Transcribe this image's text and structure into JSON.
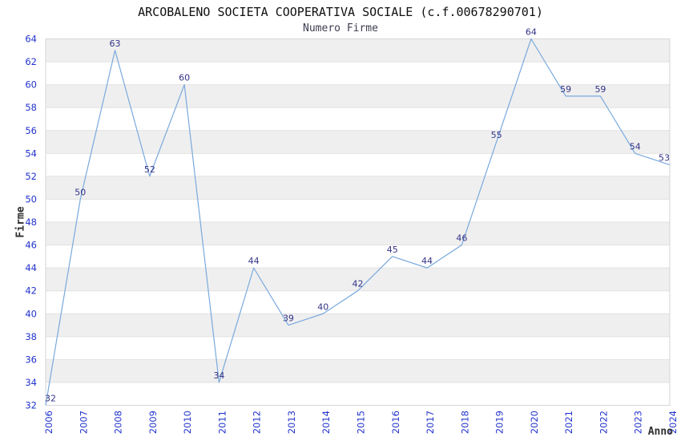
{
  "header": {
    "title": "ARCOBALENO SOCIETA COOPERATIVA SOCIALE (c.f.00678290701)",
    "subtitle": "Numero Firme"
  },
  "chart_data": {
    "type": "line",
    "title": "ARCOBALENO SOCIETA COOPERATIVA SOCIALE (c.f.00678290701)",
    "subtitle": "Numero Firme",
    "xlabel": "Anno",
    "ylabel": "Firme",
    "x": [
      "2006",
      "2007",
      "2008",
      "2009",
      "2010",
      "2011",
      "2012",
      "2013",
      "2014",
      "2015",
      "2016",
      "2017",
      "2018",
      "2019",
      "2020",
      "2021",
      "2022",
      "2023",
      "2024"
    ],
    "series": [
      {
        "name": "Numero Firme",
        "values": [
          32,
          50,
          63,
          52,
          60,
          34,
          44,
          39,
          40,
          42,
          45,
          44,
          46,
          55,
          64,
          59,
          59,
          54,
          53
        ]
      }
    ],
    "data_labels_visible": true,
    "ylim": [
      32,
      64
    ],
    "ytick_step": 2,
    "yticks": [
      32,
      34,
      36,
      38,
      40,
      42,
      44,
      46,
      48,
      50,
      52,
      54,
      56,
      58,
      60,
      62,
      64
    ],
    "grid": "horizontal alternating bands",
    "legend_position": "none",
    "colors": {
      "line": "#7AA9DD",
      "tick_labels": "#2233CC",
      "data_labels": "#333388",
      "band_fill": "#EFEFEF",
      "band_fill_alt": "#FFFFFF",
      "grid_line": "#E2E2E2",
      "plot_border": "#D6D6D6",
      "title_color": "#101010",
      "subtitle_color": "#3D3D50",
      "axis_title_color": "#2E2E2E",
      "background": "#FFFFFF"
    }
  }
}
